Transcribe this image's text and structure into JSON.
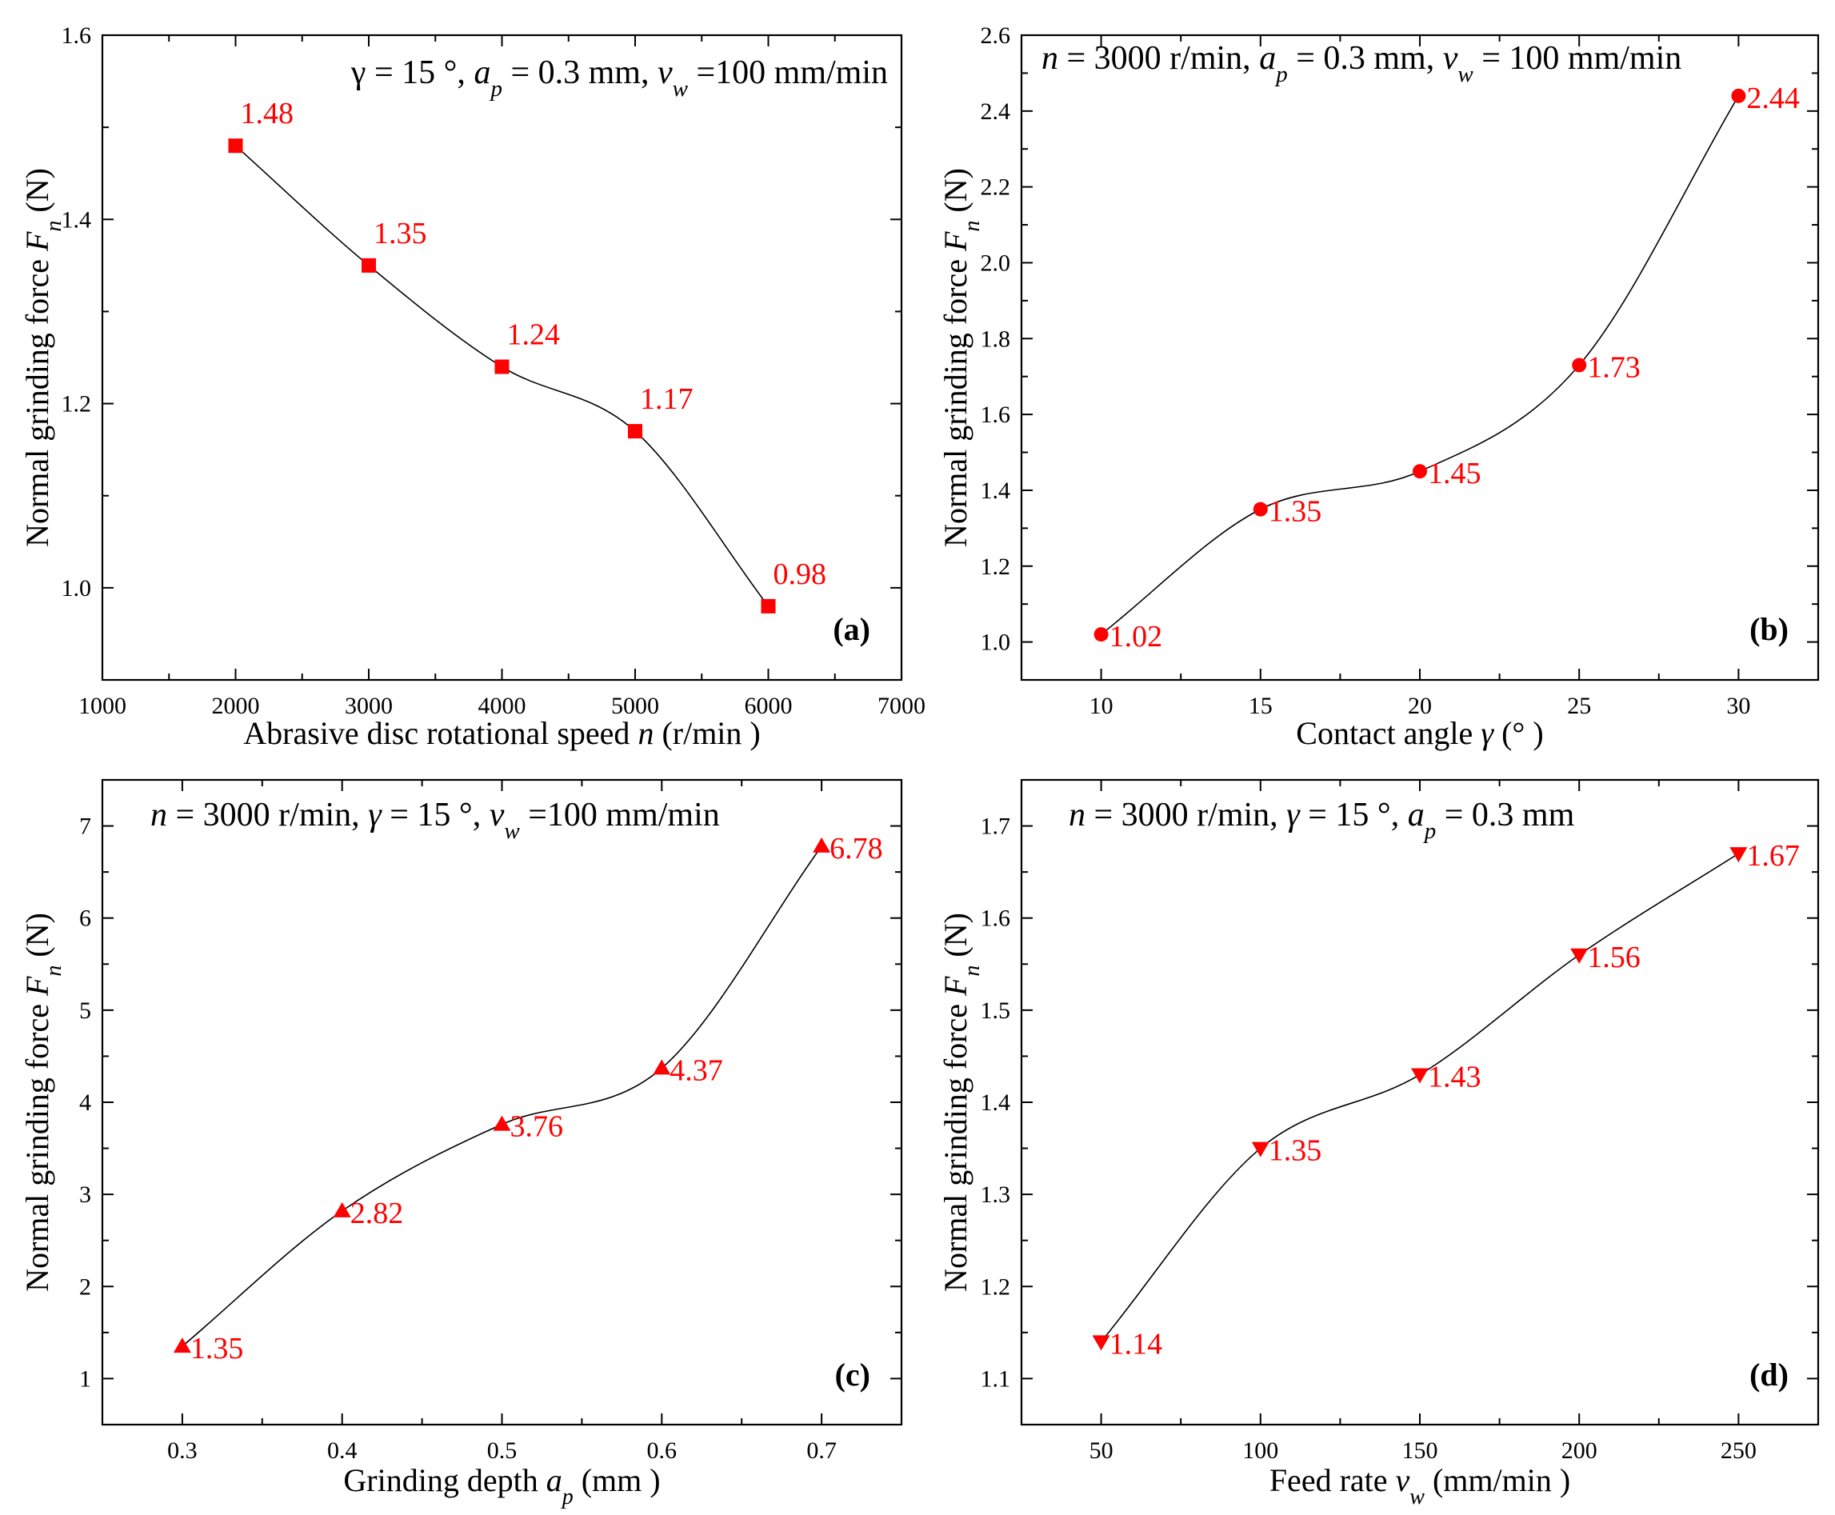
{
  "chart_data": [
    {
      "type": "line",
      "panel_label": "(a)",
      "condition": [
        "γ = 15 °, ",
        "a",
        "p",
        " = 0.3 mm, ",
        "v",
        "w",
        " =100 mm/min"
      ],
      "xlabel": [
        "Abrasive disc rotational speed ",
        "n",
        " (r/min )"
      ],
      "ylabel": [
        "Normal grinding force ",
        "F",
        "n",
        " (N)"
      ],
      "xlim": [
        1000,
        7000
      ],
      "ylim": [
        0.9,
        1.6
      ],
      "xticks": [
        1000,
        2000,
        3000,
        4000,
        5000,
        6000,
        7000
      ],
      "xtick_labels": [
        "1000",
        "2000",
        "3000",
        "4000",
        "5000",
        "6000",
        "7000"
      ],
      "yticks": [
        1.0,
        1.2,
        1.4,
        1.6
      ],
      "ytick_labels": [
        "1.0",
        "1.2",
        "1.4",
        "1.6"
      ],
      "marker": "square",
      "x": [
        2000,
        3000,
        4000,
        5000,
        6000
      ],
      "y": [
        1.48,
        1.35,
        1.24,
        1.17,
        0.98
      ],
      "point_labels": [
        "1.48",
        "1.35",
        "1.24",
        "1.17",
        "0.98"
      ],
      "label_position": "above-right"
    },
    {
      "type": "line",
      "panel_label": "(b)",
      "condition": [
        "n",
        " = 3000 r/min, ",
        "a",
        "p",
        " = 0.3 mm, ",
        "v",
        "w",
        " = 100 mm/min"
      ],
      "xlabel": [
        "Contact angle ",
        "γ",
        " (° )"
      ],
      "ylabel": [
        "Normal grinding force ",
        "F",
        "n",
        " (N)"
      ],
      "xlim": [
        7.5,
        32.5
      ],
      "ylim": [
        0.9,
        2.6
      ],
      "xticks": [
        10,
        15,
        20,
        25,
        30
      ],
      "xtick_labels": [
        "10",
        "15",
        "20",
        "25",
        "30"
      ],
      "yticks": [
        1.0,
        1.2,
        1.4,
        1.6,
        1.8,
        2.0,
        2.2,
        2.4,
        2.6
      ],
      "ytick_labels": [
        "1.0",
        "1.2",
        "1.4",
        "1.6",
        "1.8",
        "2.0",
        "2.2",
        "2.4",
        "2.6"
      ],
      "marker": "circle",
      "x": [
        10,
        15,
        20,
        25,
        30
      ],
      "y": [
        1.02,
        1.35,
        1.45,
        1.73,
        2.44
      ],
      "point_labels": [
        "1.02",
        "1.35",
        "1.45",
        "1.73",
        "2.44"
      ],
      "label_position": "right"
    },
    {
      "type": "line",
      "panel_label": "(c)",
      "condition": [
        "n",
        " = 3000 r/min, ",
        "γ",
        " = 15 °, ",
        "v",
        "w",
        " =100 mm/min"
      ],
      "xlabel": [
        "Grinding depth ",
        "a",
        "p",
        " (mm )"
      ],
      "ylabel": [
        "Normal grinding force ",
        "F",
        "n",
        "  (N)"
      ],
      "xlim": [
        0.25,
        0.75
      ],
      "ylim": [
        0.5,
        7.5
      ],
      "xticks": [
        0.3,
        0.4,
        0.5,
        0.6,
        0.7
      ],
      "xtick_labels": [
        "0.3",
        "0.4",
        "0.5",
        "0.6",
        "0.7"
      ],
      "yticks": [
        1,
        2,
        3,
        4,
        5,
        6,
        7
      ],
      "ytick_labels": [
        "1",
        "2",
        "3",
        "4",
        "5",
        "6",
        "7"
      ],
      "marker": "triangle-up",
      "x": [
        0.3,
        0.4,
        0.5,
        0.6,
        0.7
      ],
      "y": [
        1.35,
        2.82,
        3.76,
        4.37,
        6.78
      ],
      "point_labels": [
        "1.35",
        "2.82",
        "3.76",
        "4.37",
        "6.78"
      ],
      "label_position": "right"
    },
    {
      "type": "line",
      "panel_label": "(d)",
      "condition": [
        "n",
        " = 3000 r/min, ",
        "γ",
        " = 15 °, ",
        "a",
        "p",
        " = 0.3 mm"
      ],
      "xlabel": [
        "Feed rate ",
        "v",
        "w",
        " (mm/min )"
      ],
      "ylabel": [
        "Normal grinding force ",
        "F",
        "n",
        "  (N)"
      ],
      "xlim": [
        25,
        275
      ],
      "ylim": [
        1.05,
        1.75
      ],
      "xticks": [
        50,
        100,
        150,
        200,
        250
      ],
      "xtick_labels": [
        "50",
        "100",
        "150",
        "200",
        "250"
      ],
      "yticks": [
        1.1,
        1.2,
        1.3,
        1.4,
        1.5,
        1.6,
        1.7
      ],
      "ytick_labels": [
        "1.1",
        "1.2",
        "1.3",
        "1.4",
        "1.5",
        "1.6",
        "1.7"
      ],
      "marker": "triangle-down",
      "x": [
        50,
        100,
        150,
        200,
        250
      ],
      "y": [
        1.14,
        1.35,
        1.43,
        1.56,
        1.67
      ],
      "point_labels": [
        "1.14",
        "1.35",
        "1.43",
        "1.56",
        "1.67"
      ],
      "label_position": "right"
    }
  ],
  "colors": {
    "marker": "#ff0000",
    "line": "#000000",
    "axis": "#000000",
    "background": "#ffffff"
  }
}
